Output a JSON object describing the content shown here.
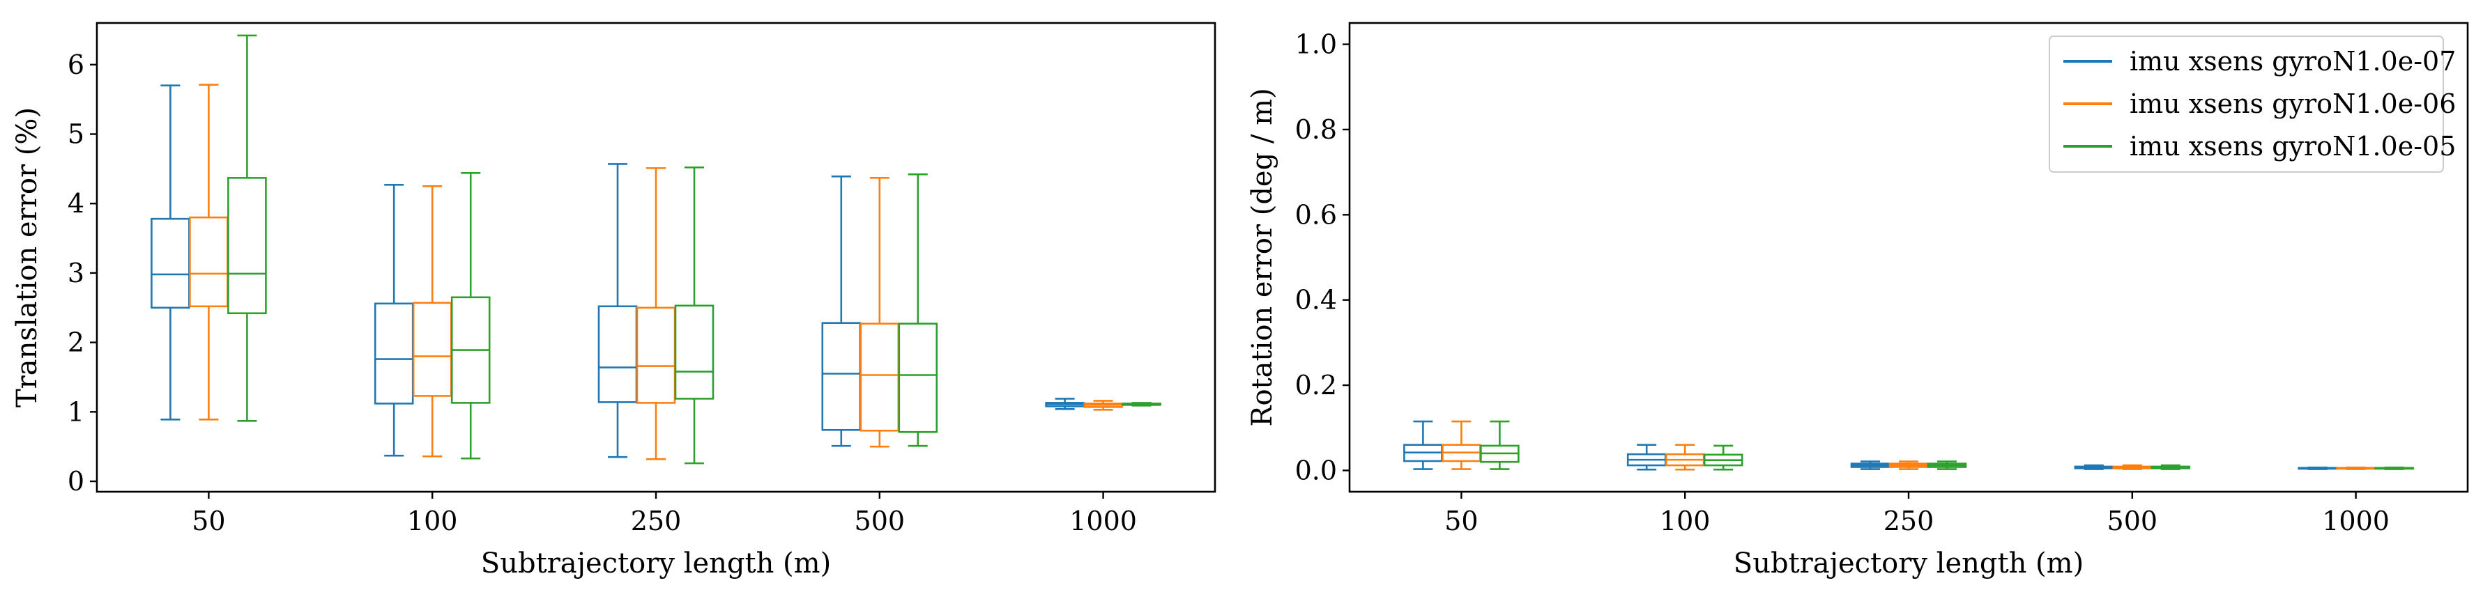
{
  "chart_data": [
    {
      "type": "box",
      "xlabel": "Subtrajectory length (m)",
      "ylabel": "Translation error (%)",
      "categories": [
        "50",
        "100",
        "250",
        "500",
        "1000"
      ],
      "ylim": [
        -0.15,
        6.6
      ],
      "yticks": [
        0,
        1,
        2,
        3,
        4,
        5,
        6
      ],
      "grid": false,
      "series": [
        {
          "name": "imu xsens gyroN1.0e-07",
          "color": "#1f77b4",
          "boxes": [
            {
              "whislo": 0.89,
              "q1": 2.5,
              "med": 2.98,
              "q3": 3.78,
              "whishi": 5.7
            },
            {
              "whislo": 0.37,
              "q1": 1.12,
              "med": 1.76,
              "q3": 2.56,
              "whishi": 4.27
            },
            {
              "whislo": 0.35,
              "q1": 1.14,
              "med": 1.64,
              "q3": 2.52,
              "whishi": 4.57
            },
            {
              "whislo": 0.51,
              "q1": 0.74,
              "med": 1.55,
              "q3": 2.28,
              "whishi": 4.39
            },
            {
              "whislo": 1.04,
              "q1": 1.08,
              "med": 1.11,
              "q3": 1.13,
              "whishi": 1.19
            }
          ]
        },
        {
          "name": "imu xsens gyroN1.0e-06",
          "color": "#ff7f0e",
          "boxes": [
            {
              "whislo": 0.89,
              "q1": 2.52,
              "med": 2.99,
              "q3": 3.8,
              "whishi": 5.71
            },
            {
              "whislo": 0.36,
              "q1": 1.23,
              "med": 1.8,
              "q3": 2.57,
              "whishi": 4.25
            },
            {
              "whislo": 0.32,
              "q1": 1.13,
              "med": 1.66,
              "q3": 2.5,
              "whishi": 4.51
            },
            {
              "whislo": 0.5,
              "q1": 0.73,
              "med": 1.53,
              "q3": 2.27,
              "whishi": 4.37
            },
            {
              "whislo": 1.03,
              "q1": 1.07,
              "med": 1.1,
              "q3": 1.12,
              "whishi": 1.16
            }
          ]
        },
        {
          "name": "imu xsens gyroN1.0e-05",
          "color": "#2ca02c",
          "boxes": [
            {
              "whislo": 0.87,
              "q1": 2.42,
              "med": 2.99,
              "q3": 4.37,
              "whishi": 6.42
            },
            {
              "whislo": 0.33,
              "q1": 1.13,
              "med": 1.89,
              "q3": 2.65,
              "whishi": 4.44
            },
            {
              "whislo": 0.26,
              "q1": 1.19,
              "med": 1.58,
              "q3": 2.53,
              "whishi": 4.52
            },
            {
              "whislo": 0.51,
              "q1": 0.71,
              "med": 1.53,
              "q3": 2.27,
              "whishi": 4.42
            },
            {
              "whislo": 1.09,
              "q1": 1.1,
              "med": 1.11,
              "q3": 1.12,
              "whishi": 1.13
            }
          ]
        }
      ]
    },
    {
      "type": "box",
      "xlabel": "Subtrajectory length (m)",
      "ylabel": "Rotation error (deg / m)",
      "categories": [
        "50",
        "100",
        "250",
        "500",
        "1000"
      ],
      "ylim": [
        -0.05,
        1.05
      ],
      "yticks": [
        "0.0",
        "0.2",
        "0.4",
        "0.6",
        "0.8",
        "1.0"
      ],
      "grid": false,
      "legend": "top-right",
      "series": [
        {
          "name": "imu xsens gyroN1.0e-07",
          "color": "#1f77b4",
          "boxes": [
            {
              "whislo": 0.003,
              "q1": 0.022,
              "med": 0.042,
              "q3": 0.06,
              "whishi": 0.115
            },
            {
              "whislo": 0.002,
              "q1": 0.012,
              "med": 0.025,
              "q3": 0.038,
              "whishi": 0.06
            },
            {
              "whislo": 0.003,
              "q1": 0.008,
              "med": 0.012,
              "q3": 0.016,
              "whishi": 0.021
            },
            {
              "whislo": 0.003,
              "q1": 0.005,
              "med": 0.007,
              "q3": 0.009,
              "whishi": 0.012
            },
            {
              "whislo": 0.003,
              "q1": 0.004,
              "med": 0.005,
              "q3": 0.006,
              "whishi": 0.007
            }
          ]
        },
        {
          "name": "imu xsens gyroN1.0e-06",
          "color": "#ff7f0e",
          "boxes": [
            {
              "whislo": 0.003,
              "q1": 0.022,
              "med": 0.042,
              "q3": 0.06,
              "whishi": 0.115
            },
            {
              "whislo": 0.002,
              "q1": 0.012,
              "med": 0.025,
              "q3": 0.038,
              "whishi": 0.06
            },
            {
              "whislo": 0.003,
              "q1": 0.008,
              "med": 0.012,
              "q3": 0.016,
              "whishi": 0.021
            },
            {
              "whislo": 0.003,
              "q1": 0.005,
              "med": 0.007,
              "q3": 0.009,
              "whishi": 0.012
            },
            {
              "whislo": 0.003,
              "q1": 0.004,
              "med": 0.005,
              "q3": 0.006,
              "whishi": 0.007
            }
          ]
        },
        {
          "name": "imu xsens gyroN1.0e-05",
          "color": "#2ca02c",
          "boxes": [
            {
              "whislo": 0.003,
              "q1": 0.02,
              "med": 0.04,
              "q3": 0.058,
              "whishi": 0.115
            },
            {
              "whislo": 0.002,
              "q1": 0.012,
              "med": 0.024,
              "q3": 0.037,
              "whishi": 0.058
            },
            {
              "whislo": 0.003,
              "q1": 0.008,
              "med": 0.012,
              "q3": 0.016,
              "whishi": 0.021
            },
            {
              "whislo": 0.003,
              "q1": 0.005,
              "med": 0.007,
              "q3": 0.009,
              "whishi": 0.012
            },
            {
              "whislo": 0.003,
              "q1": 0.004,
              "med": 0.005,
              "q3": 0.006,
              "whishi": 0.007
            }
          ]
        }
      ]
    }
  ]
}
